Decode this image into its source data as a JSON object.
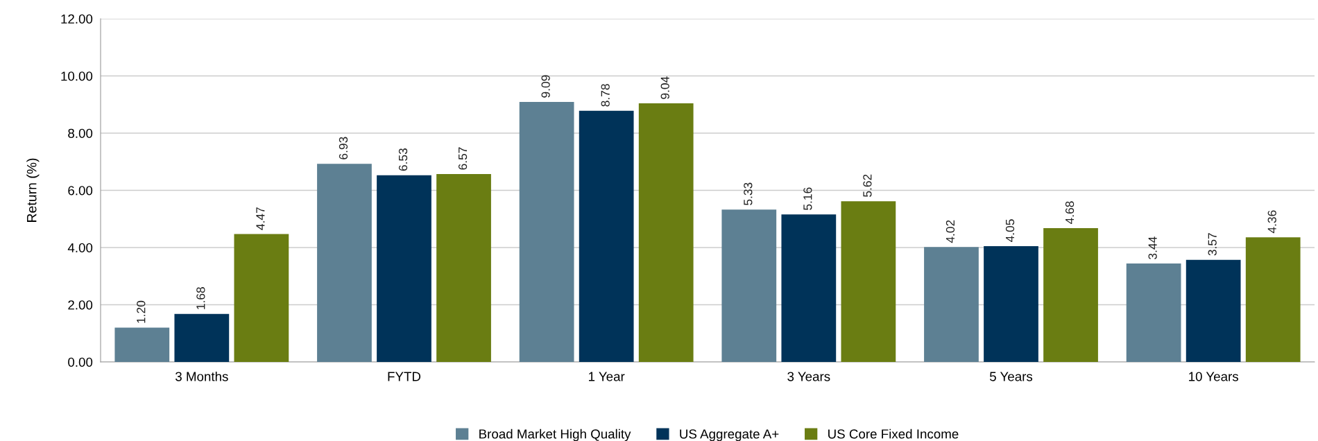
{
  "chart_data": {
    "type": "bar",
    "ylabel": "Return (%)",
    "categories": [
      "3 Months",
      "FYTD",
      "1 Year",
      "3 Years",
      "5 Years",
      "10 Years"
    ],
    "series": [
      {
        "name": "Broad Market High Quality",
        "color": "#5d8093",
        "values": [
          1.2,
          6.93,
          9.09,
          5.33,
          4.02,
          3.44
        ],
        "value_labels": [
          "1.20",
          "6.93",
          "9.09",
          "5.33",
          "4.02",
          "3.44"
        ]
      },
      {
        "name": "US Aggregate A+",
        "color": "#003359",
        "values": [
          1.68,
          6.53,
          8.78,
          5.16,
          4.05,
          3.57
        ],
        "value_labels": [
          "1.68",
          "6.53",
          "8.78",
          "5.16",
          "4.05",
          "3.57"
        ]
      },
      {
        "name": "US Core Fixed Income",
        "color": "#6a7d12",
        "values": [
          4.47,
          6.57,
          9.04,
          5.62,
          4.68,
          4.36
        ],
        "value_labels": [
          "4.47",
          "6.57",
          "9.04",
          "5.62",
          "4.68",
          "4.36"
        ]
      }
    ],
    "ylim": [
      0,
      12
    ],
    "yticks": [
      {
        "value": 0,
        "label": "0.00"
      },
      {
        "value": 2,
        "label": "2.00"
      },
      {
        "value": 4,
        "label": "4.00"
      },
      {
        "value": 6,
        "label": "6.00"
      },
      {
        "value": 8,
        "label": "8.00"
      },
      {
        "value": 10,
        "label": "10.00"
      },
      {
        "value": 12,
        "label": "12.00"
      }
    ],
    "grid": "y",
    "legend": "bottom"
  }
}
